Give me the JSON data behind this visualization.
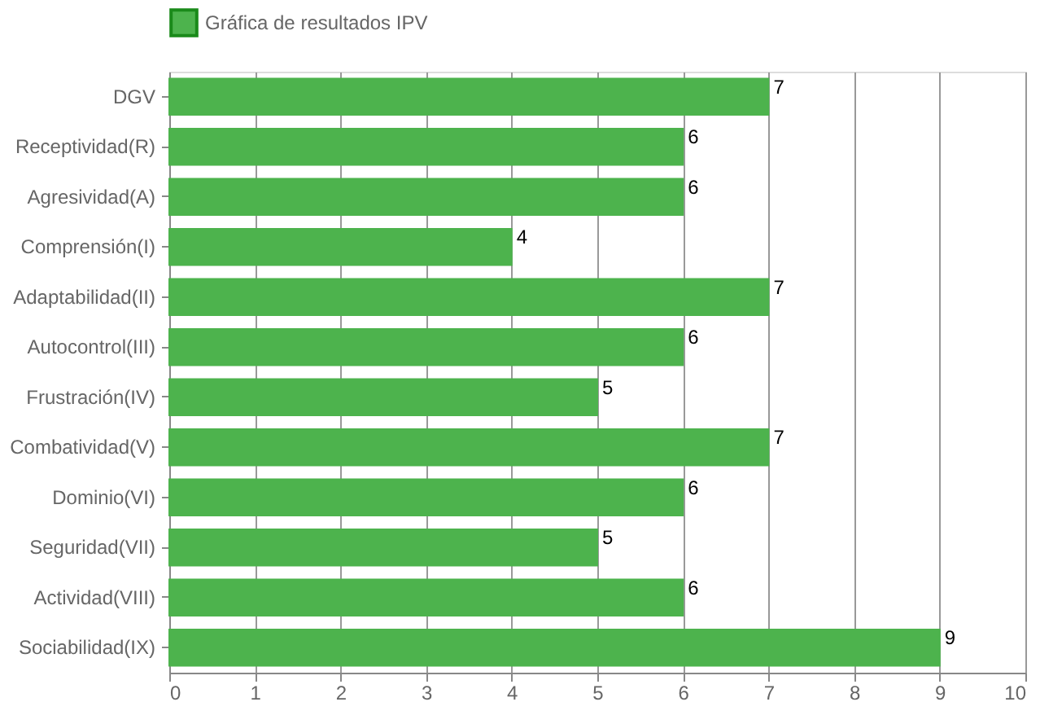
{
  "chart_data": {
    "type": "bar",
    "orientation": "horizontal",
    "categories": [
      "DGV",
      "Receptividad(R)",
      "Agresividad(A)",
      "Comprensión(I)",
      "Adaptabilidad(II)",
      "Autocontrol(III)",
      "Frustración(IV)",
      "Combatividad(V)",
      "Dominio(VI)",
      "Seguridad(VII)",
      "Actividad(VIII)",
      "Sociabilidad(IX)"
    ],
    "series": [
      {
        "name": "Gráfica de resultados IPV",
        "color": "#4db34d",
        "values": [
          7,
          6,
          6,
          4,
          7,
          6,
          5,
          7,
          6,
          5,
          6,
          9
        ]
      }
    ],
    "xlim": [
      0,
      10
    ],
    "xticks": [
      0,
      1,
      2,
      3,
      4,
      5,
      6,
      7,
      8,
      9,
      10
    ],
    "grid": "x",
    "legend": "top",
    "data_labels": true
  }
}
